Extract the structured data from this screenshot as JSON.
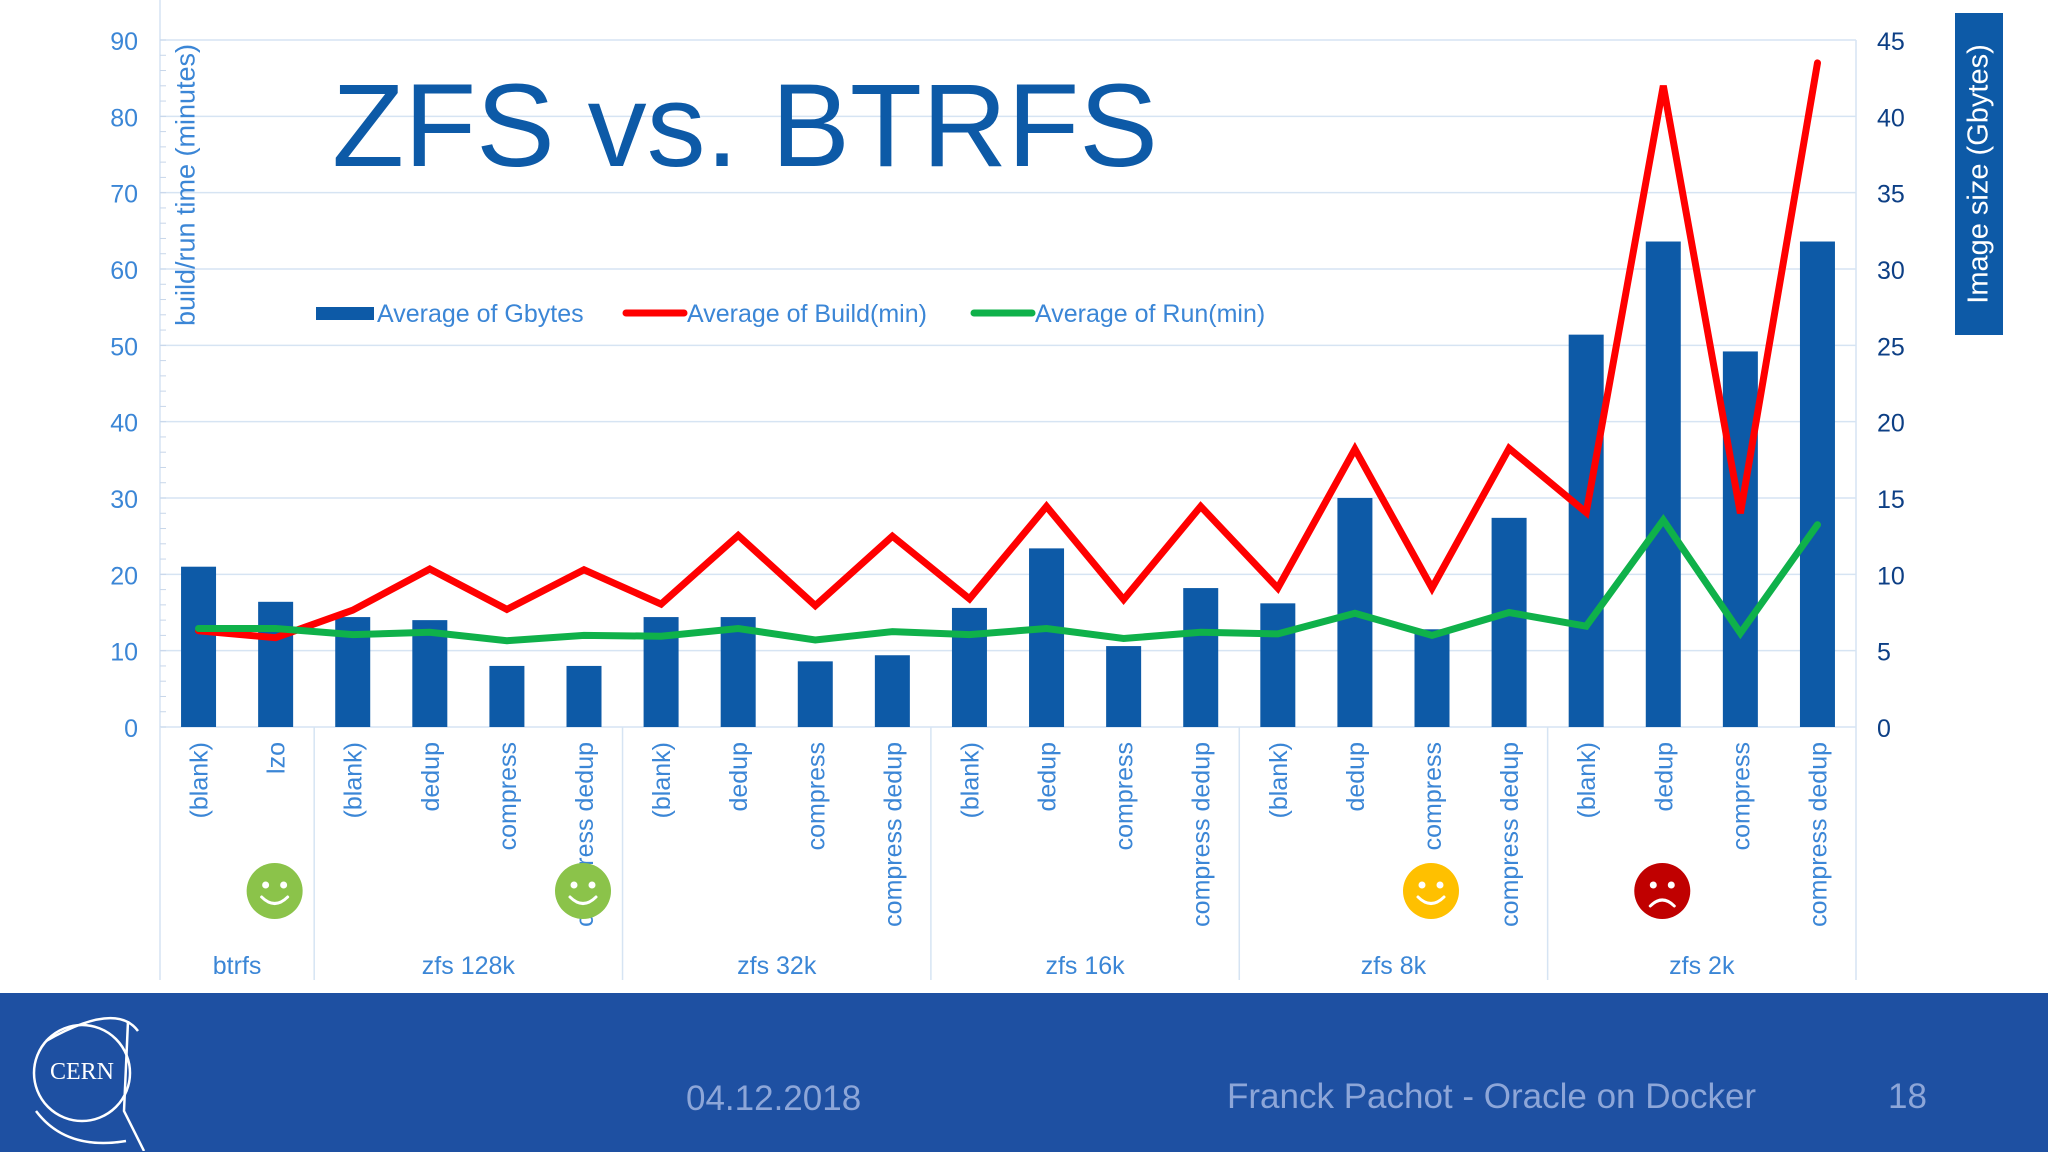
{
  "slide": {
    "date": "04.12.2018",
    "presenter": "Franck Pachot - Oracle on Docker",
    "page_number": "18",
    "logo_text": "CERN"
  },
  "colors": {
    "bar": "#0d5aa7",
    "build_line": "#ff0000",
    "run_line": "#0fb14a",
    "axis_text": "#3b86d6",
    "grid": "#d6e4f3",
    "footer_bg": "#1e50a2",
    "smiley_green": "#8bc34a",
    "smiley_yellow": "#ffc000",
    "frown_red": "#c00000"
  },
  "chart_data": {
    "type": "bar",
    "title": "ZFS vs. BTRFS",
    "ylabel": "build/run time (minutes)",
    "y2label": "Image size (Gbytes)",
    "ylim": [
      0,
      90
    ],
    "y2lim": [
      0,
      45
    ],
    "yticks": [
      0,
      10,
      20,
      30,
      40,
      50,
      60,
      70,
      80,
      90
    ],
    "y2ticks": [
      0,
      5,
      10,
      15,
      20,
      25,
      30,
      35,
      40,
      45
    ],
    "categories": [
      "(blank)",
      "lzo",
      "(blank)",
      "dedup",
      "compress",
      "compress dedup",
      "(blank)",
      "dedup",
      "compress",
      "compress dedup",
      "(blank)",
      "dedup",
      "compress",
      "compress dedup",
      "(blank)",
      "dedup",
      "compress",
      "compress dedup",
      "(blank)",
      "dedup",
      "compress",
      "compress dedup"
    ],
    "groups": [
      {
        "label": "btrfs",
        "count": 2
      },
      {
        "label": "zfs 128k",
        "count": 4
      },
      {
        "label": "zfs 32k",
        "count": 4
      },
      {
        "label": "zfs 16k",
        "count": 4
      },
      {
        "label": "zfs  8k",
        "count": 4
      },
      {
        "label": "zfs  2k",
        "count": 4
      }
    ],
    "series": [
      {
        "name": "Average of Gbytes",
        "kind": "bar",
        "axis": "y2",
        "values": [
          10.5,
          8.2,
          7.2,
          7.0,
          4.0,
          4.0,
          7.2,
          7.2,
          4.3,
          4.7,
          7.8,
          11.7,
          5.3,
          9.1,
          8.1,
          15.0,
          6.4,
          13.7,
          25.7,
          31.8,
          24.6,
          31.8
        ]
      },
      {
        "name": "Average of Build(min)",
        "kind": "line",
        "axis": "y",
        "values": [
          12.6,
          11.7,
          15.3,
          20.7,
          15.4,
          20.6,
          16.1,
          25.1,
          15.9,
          25.0,
          16.8,
          28.9,
          16.7,
          28.9,
          18.2,
          36.4,
          18.2,
          36.5,
          28.1,
          84.0,
          28.0,
          87.0
        ]
      },
      {
        "name": "Average of Run(min)",
        "kind": "line",
        "axis": "y",
        "values": [
          12.9,
          12.9,
          12.1,
          12.4,
          11.3,
          12.0,
          11.9,
          12.9,
          11.4,
          12.5,
          12.1,
          12.9,
          11.6,
          12.4,
          12.2,
          14.9,
          12.0,
          15.0,
          13.2,
          27.1,
          12.3,
          26.5
        ]
      }
    ],
    "markers": [
      {
        "after_index": 1,
        "mood": "happy",
        "color": "#8bc34a"
      },
      {
        "after_index": 5,
        "mood": "happy",
        "color": "#8bc34a"
      },
      {
        "after_index": 16,
        "mood": "happy",
        "color": "#ffc000"
      },
      {
        "after_index": 19,
        "mood": "sad",
        "color": "#c00000"
      }
    ]
  }
}
